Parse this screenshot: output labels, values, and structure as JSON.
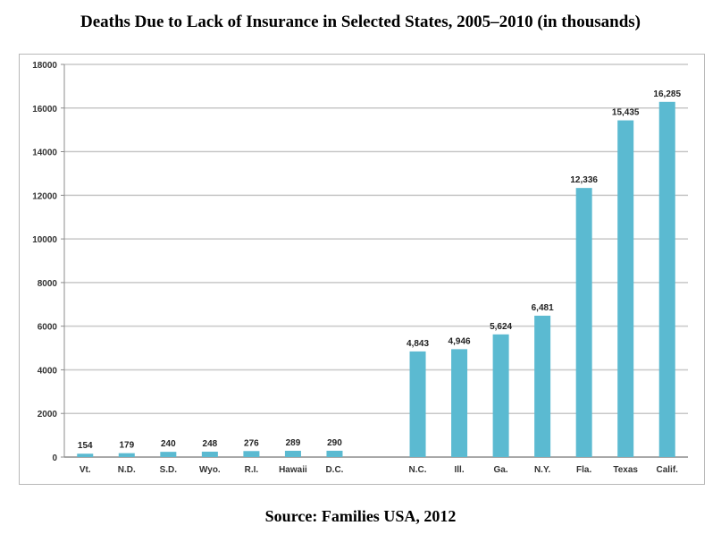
{
  "title": "Deaths Due to Lack of Insurance in Selected States, 2005–2010 (in thousands)",
  "source": "Source:  Families USA, 2012",
  "colors": {
    "bar": "#5bbad1",
    "grid": "#c8c8c8",
    "axis": "#8c8c8c"
  },
  "chart_data": {
    "type": "bar",
    "categories": [
      "Vt.",
      "N.D.",
      "S.D.",
      "Wyo.",
      "R.I.",
      "Hawaii",
      "D.C.",
      "",
      "N.C.",
      "Ill.",
      "Ga.",
      "N.Y.",
      "Fla.",
      "Texas",
      "Calif."
    ],
    "values": [
      154,
      179,
      240,
      248,
      276,
      289,
      290,
      null,
      4843,
      4946,
      5624,
      6481,
      12336,
      15435,
      16285
    ],
    "data_labels": [
      "154",
      "179",
      "240",
      "248",
      "276",
      "289",
      "290",
      "",
      "4,843",
      "4,946",
      "5,624",
      "6,481",
      "12,336",
      "15,435",
      "16,285"
    ],
    "ylim": [
      0,
      18000
    ],
    "yticks": [
      0,
      2000,
      4000,
      6000,
      8000,
      10000,
      12000,
      14000,
      16000,
      18000
    ],
    "grid": true,
    "legend": "none"
  }
}
